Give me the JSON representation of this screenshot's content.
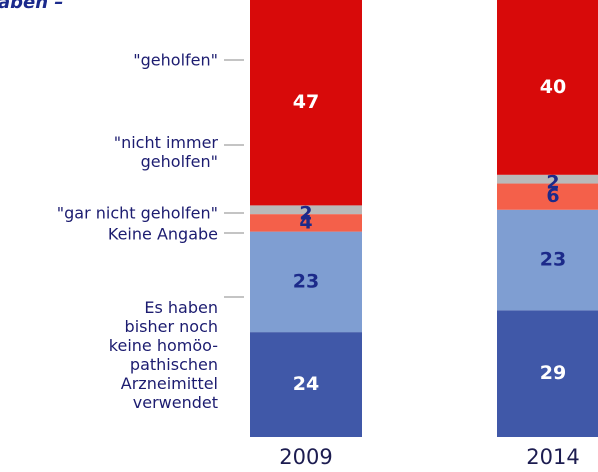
{
  "chart_data": {
    "type": "stacked_bar",
    "title": "aben –",
    "categories": [
      "2009",
      "2014"
    ],
    "series": [
      {
        "name": "\"geholfen\"",
        "color": "#4058a8",
        "values": [
          24,
          29
        ]
      },
      {
        "name": "\"nicht immer\ngeholfen\"",
        "color": "#7f9ed2",
        "values": [
          23,
          23
        ]
      },
      {
        "name": "\"gar nicht geholfen\"",
        "color": "#f4604a",
        "values": [
          4,
          6
        ]
      },
      {
        "name": "Keine Angabe",
        "color": "#b9b9b9",
        "values": [
          2,
          2
        ]
      },
      {
        "name": "Es haben\nbisher noch\nkeine homöo-\npathischen\nArzneimittel\nverwendet",
        "color": "#d80a0a",
        "values": [
          47,
          40
        ]
      }
    ],
    "ylim": [
      0,
      100
    ]
  }
}
